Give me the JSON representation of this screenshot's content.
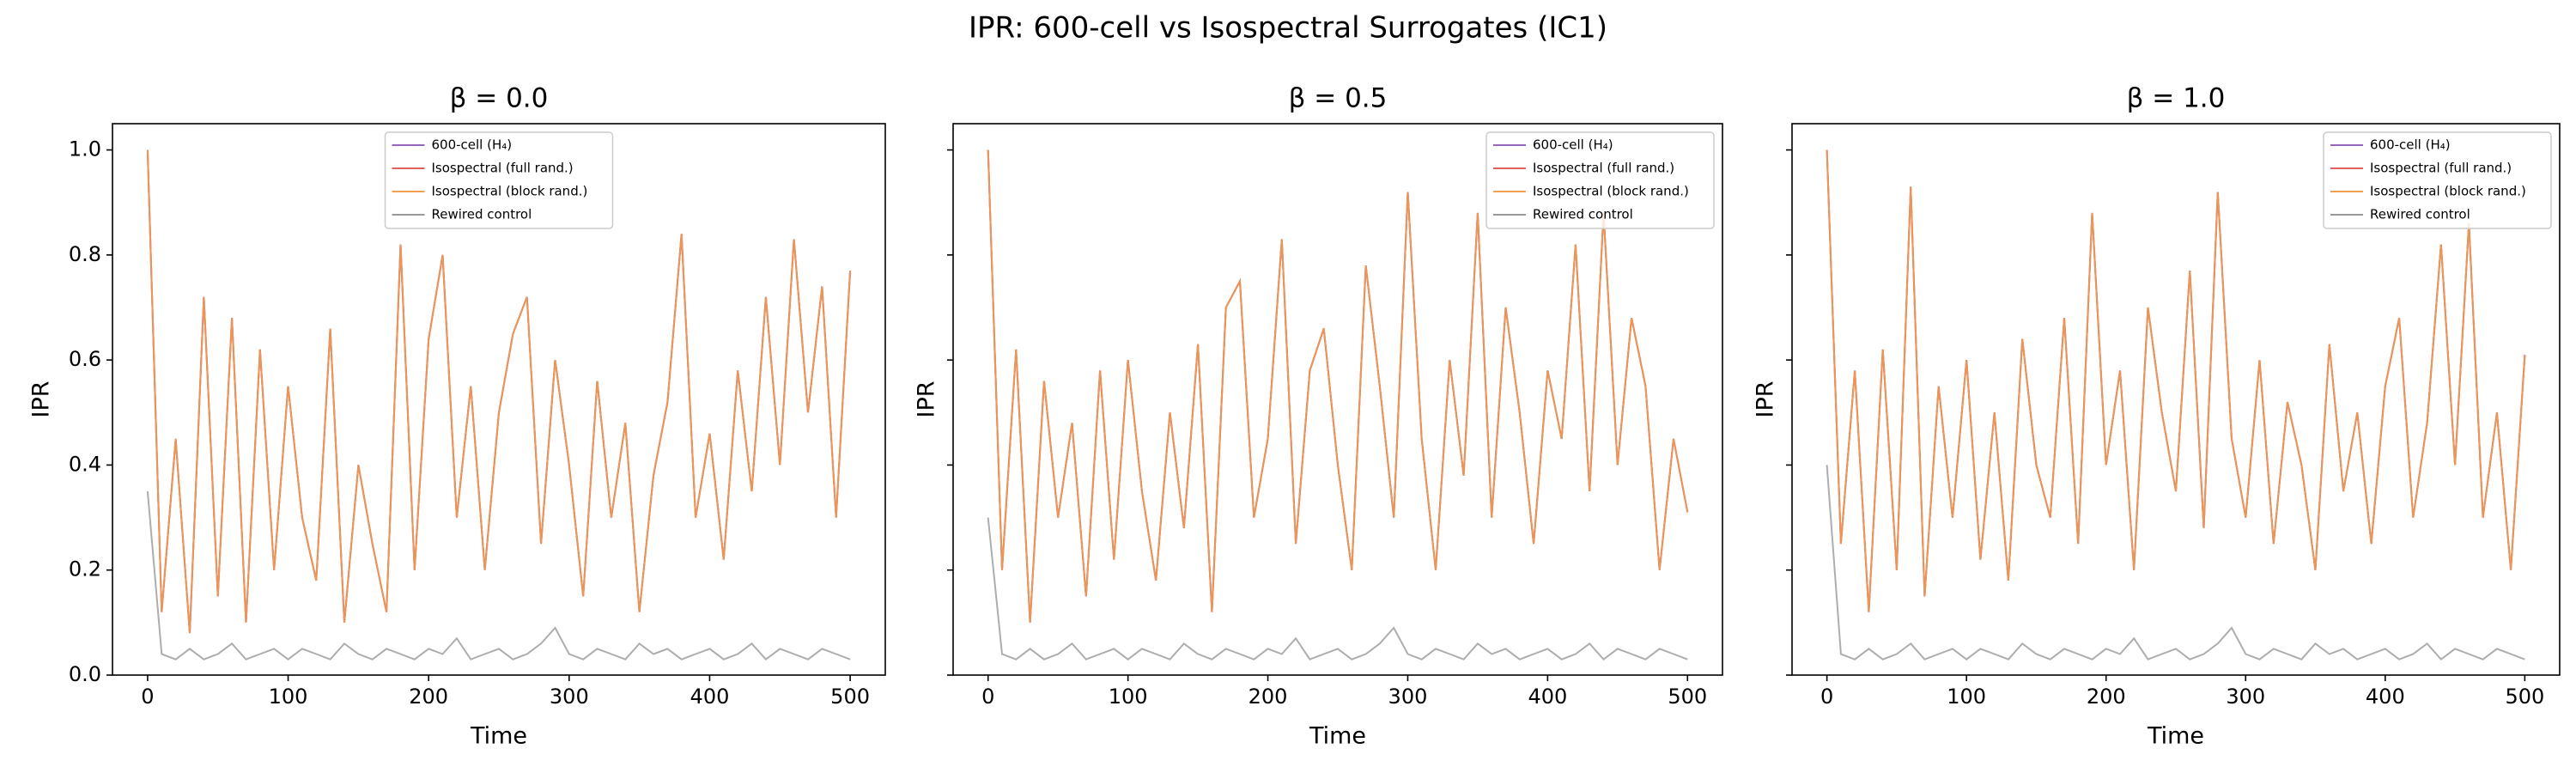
{
  "title": "IPR: 600-cell vs Isospectral Surrogates (IC1)",
  "sharey": true,
  "chart_data": [
    {
      "type": "line",
      "title": "β = 0.0",
      "xlabel": "Time",
      "ylabel": "IPR",
      "legend_loc": "upper center",
      "xlim": [
        -25,
        525
      ],
      "ylim": [
        0,
        1.05
      ],
      "xticks": [
        0,
        100,
        200,
        300,
        400,
        500
      ],
      "yticks": [
        {
          "value": 0,
          "label": "0.0"
        },
        0.2,
        0.4,
        0.6,
        0.8,
        {
          "value": 1,
          "label": "1.0"
        }
      ],
      "x": [
        0,
        10,
        20,
        30,
        40,
        50,
        60,
        70,
        80,
        90,
        100,
        110,
        120,
        130,
        140,
        150,
        160,
        170,
        180,
        190,
        200,
        210,
        220,
        230,
        240,
        250,
        260,
        270,
        280,
        290,
        300,
        310,
        320,
        330,
        340,
        350,
        360,
        370,
        380,
        390,
        400,
        410,
        420,
        430,
        440,
        450,
        460,
        470,
        480,
        490,
        500
      ],
      "series": [
        {
          "name": "600-cell (H₄)",
          "color": "#9467bd",
          "values": [
            1.0,
            0.12,
            0.45,
            0.08,
            0.72,
            0.15,
            0.68,
            0.1,
            0.62,
            0.2,
            0.55,
            0.3,
            0.18,
            0.66,
            0.1,
            0.4,
            0.25,
            0.12,
            0.82,
            0.2,
            0.64,
            0.8,
            0.3,
            0.55,
            0.2,
            0.5,
            0.65,
            0.72,
            0.25,
            0.6,
            0.4,
            0.15,
            0.56,
            0.3,
            0.48,
            0.12,
            0.38,
            0.52,
            0.84,
            0.3,
            0.46,
            0.22,
            0.58,
            0.35,
            0.72,
            0.4,
            0.83,
            0.5,
            0.74,
            0.3,
            0.77
          ]
        },
        {
          "name": "Isospectral (full rand.)",
          "color": "#e0605a",
          "values": [
            1.0,
            0.12,
            0.45,
            0.08,
            0.72,
            0.15,
            0.68,
            0.1,
            0.62,
            0.2,
            0.55,
            0.3,
            0.18,
            0.66,
            0.1,
            0.4,
            0.25,
            0.12,
            0.82,
            0.2,
            0.64,
            0.8,
            0.3,
            0.55,
            0.2,
            0.5,
            0.65,
            0.72,
            0.25,
            0.6,
            0.4,
            0.15,
            0.56,
            0.3,
            0.48,
            0.12,
            0.38,
            0.52,
            0.84,
            0.3,
            0.46,
            0.22,
            0.58,
            0.35,
            0.72,
            0.4,
            0.83,
            0.5,
            0.74,
            0.3,
            0.77
          ]
        },
        {
          "name": "Isospectral (block rand.)",
          "color": "#f0a050",
          "values": [
            1.0,
            0.12,
            0.45,
            0.08,
            0.72,
            0.15,
            0.68,
            0.1,
            0.62,
            0.2,
            0.55,
            0.3,
            0.18,
            0.66,
            0.1,
            0.4,
            0.25,
            0.12,
            0.82,
            0.2,
            0.64,
            0.8,
            0.3,
            0.55,
            0.2,
            0.5,
            0.65,
            0.72,
            0.25,
            0.6,
            0.4,
            0.15,
            0.56,
            0.3,
            0.48,
            0.12,
            0.38,
            0.52,
            0.84,
            0.3,
            0.46,
            0.22,
            0.58,
            0.35,
            0.72,
            0.4,
            0.83,
            0.5,
            0.74,
            0.3,
            0.77
          ]
        },
        {
          "name": "Rewired control",
          "color": "#999999",
          "values": [
            0.35,
            0.04,
            0.03,
            0.05,
            0.03,
            0.04,
            0.06,
            0.03,
            0.04,
            0.05,
            0.03,
            0.05,
            0.04,
            0.03,
            0.06,
            0.04,
            0.03,
            0.05,
            0.04,
            0.03,
            0.05,
            0.04,
            0.07,
            0.03,
            0.04,
            0.05,
            0.03,
            0.04,
            0.06,
            0.09,
            0.04,
            0.03,
            0.05,
            0.04,
            0.03,
            0.06,
            0.04,
            0.05,
            0.03,
            0.04,
            0.05,
            0.03,
            0.04,
            0.06,
            0.03,
            0.05,
            0.04,
            0.03,
            0.05,
            0.04,
            0.03
          ]
        }
      ]
    },
    {
      "type": "line",
      "title": "β = 0.5",
      "xlabel": "Time",
      "ylabel": "IPR",
      "legend_loc": "upper right",
      "xlim": [
        -25,
        525
      ],
      "ylim": [
        0,
        1.05
      ],
      "xticks": [
        0,
        100,
        200,
        300,
        400,
        500
      ],
      "yticks": [
        {
          "value": 0,
          "label": "0.0"
        },
        0.2,
        0.4,
        0.6,
        0.8,
        {
          "value": 1,
          "label": "1.0"
        }
      ],
      "x": [
        0,
        10,
        20,
        30,
        40,
        50,
        60,
        70,
        80,
        90,
        100,
        110,
        120,
        130,
        140,
        150,
        160,
        170,
        180,
        190,
        200,
        210,
        220,
        230,
        240,
        250,
        260,
        270,
        280,
        290,
        300,
        310,
        320,
        330,
        340,
        350,
        360,
        370,
        380,
        390,
        400,
        410,
        420,
        430,
        440,
        450,
        460,
        470,
        480,
        490,
        500
      ],
      "series": [
        {
          "name": "600-cell (H₄)",
          "color": "#9467bd",
          "values": [
            1.0,
            0.2,
            0.62,
            0.1,
            0.56,
            0.3,
            0.48,
            0.15,
            0.58,
            0.22,
            0.6,
            0.35,
            0.18,
            0.5,
            0.28,
            0.63,
            0.12,
            0.7,
            0.75,
            0.3,
            0.45,
            0.83,
            0.25,
            0.58,
            0.66,
            0.4,
            0.2,
            0.78,
            0.55,
            0.3,
            0.92,
            0.45,
            0.2,
            0.6,
            0.38,
            0.88,
            0.3,
            0.7,
            0.5,
            0.25,
            0.58,
            0.45,
            0.82,
            0.35,
            0.88,
            0.4,
            0.68,
            0.55,
            0.2,
            0.45,
            0.31
          ]
        },
        {
          "name": "Isospectral (full rand.)",
          "color": "#e0605a",
          "values": [
            1.0,
            0.2,
            0.62,
            0.1,
            0.56,
            0.3,
            0.48,
            0.15,
            0.58,
            0.22,
            0.6,
            0.35,
            0.18,
            0.5,
            0.28,
            0.63,
            0.12,
            0.7,
            0.75,
            0.3,
            0.45,
            0.83,
            0.25,
            0.58,
            0.66,
            0.4,
            0.2,
            0.78,
            0.55,
            0.3,
            0.92,
            0.45,
            0.2,
            0.6,
            0.38,
            0.88,
            0.3,
            0.7,
            0.5,
            0.25,
            0.58,
            0.45,
            0.82,
            0.35,
            0.88,
            0.4,
            0.68,
            0.55,
            0.2,
            0.45,
            0.31
          ]
        },
        {
          "name": "Isospectral (block rand.)",
          "color": "#f0a050",
          "values": [
            1.0,
            0.2,
            0.62,
            0.1,
            0.56,
            0.3,
            0.48,
            0.15,
            0.58,
            0.22,
            0.6,
            0.35,
            0.18,
            0.5,
            0.28,
            0.63,
            0.12,
            0.7,
            0.75,
            0.3,
            0.45,
            0.83,
            0.25,
            0.58,
            0.66,
            0.4,
            0.2,
            0.78,
            0.55,
            0.3,
            0.92,
            0.45,
            0.2,
            0.6,
            0.38,
            0.88,
            0.3,
            0.7,
            0.5,
            0.25,
            0.58,
            0.45,
            0.82,
            0.35,
            0.88,
            0.4,
            0.68,
            0.55,
            0.2,
            0.45,
            0.31
          ]
        },
        {
          "name": "Rewired control",
          "color": "#999999",
          "values": [
            0.3,
            0.04,
            0.03,
            0.05,
            0.03,
            0.04,
            0.06,
            0.03,
            0.04,
            0.05,
            0.03,
            0.05,
            0.04,
            0.03,
            0.06,
            0.04,
            0.03,
            0.05,
            0.04,
            0.03,
            0.05,
            0.04,
            0.07,
            0.03,
            0.04,
            0.05,
            0.03,
            0.04,
            0.06,
            0.09,
            0.04,
            0.03,
            0.05,
            0.04,
            0.03,
            0.06,
            0.04,
            0.05,
            0.03,
            0.04,
            0.05,
            0.03,
            0.04,
            0.06,
            0.03,
            0.05,
            0.04,
            0.03,
            0.05,
            0.04,
            0.03
          ]
        }
      ]
    },
    {
      "type": "line",
      "title": "β = 1.0",
      "xlabel": "Time",
      "ylabel": "IPR",
      "legend_loc": "upper right",
      "xlim": [
        -25,
        525
      ],
      "ylim": [
        0,
        1.05
      ],
      "xticks": [
        0,
        100,
        200,
        300,
        400,
        500
      ],
      "yticks": [
        {
          "value": 0,
          "label": "0.0"
        },
        0.2,
        0.4,
        0.6,
        0.8,
        {
          "value": 1,
          "label": "1.0"
        }
      ],
      "x": [
        0,
        10,
        20,
        30,
        40,
        50,
        60,
        70,
        80,
        90,
        100,
        110,
        120,
        130,
        140,
        150,
        160,
        170,
        180,
        190,
        200,
        210,
        220,
        230,
        240,
        250,
        260,
        270,
        280,
        290,
        300,
        310,
        320,
        330,
        340,
        350,
        360,
        370,
        380,
        390,
        400,
        410,
        420,
        430,
        440,
        450,
        460,
        470,
        480,
        490,
        500
      ],
      "series": [
        {
          "name": "600-cell (H₄)",
          "color": "#9467bd",
          "values": [
            1.0,
            0.25,
            0.58,
            0.12,
            0.62,
            0.2,
            0.93,
            0.15,
            0.55,
            0.3,
            0.6,
            0.22,
            0.5,
            0.18,
            0.64,
            0.4,
            0.3,
            0.68,
            0.25,
            0.88,
            0.4,
            0.58,
            0.2,
            0.7,
            0.5,
            0.35,
            0.77,
            0.28,
            0.92,
            0.45,
            0.3,
            0.6,
            0.25,
            0.52,
            0.4,
            0.2,
            0.63,
            0.35,
            0.5,
            0.25,
            0.55,
            0.68,
            0.3,
            0.48,
            0.82,
            0.4,
            0.86,
            0.3,
            0.5,
            0.2,
            0.61
          ]
        },
        {
          "name": "Isospectral (full rand.)",
          "color": "#e0605a",
          "values": [
            1.0,
            0.25,
            0.58,
            0.12,
            0.62,
            0.2,
            0.93,
            0.15,
            0.55,
            0.3,
            0.6,
            0.22,
            0.5,
            0.18,
            0.64,
            0.4,
            0.3,
            0.68,
            0.25,
            0.88,
            0.4,
            0.58,
            0.2,
            0.7,
            0.5,
            0.35,
            0.77,
            0.28,
            0.92,
            0.45,
            0.3,
            0.6,
            0.25,
            0.52,
            0.4,
            0.2,
            0.63,
            0.35,
            0.5,
            0.25,
            0.55,
            0.68,
            0.3,
            0.48,
            0.82,
            0.4,
            0.86,
            0.3,
            0.5,
            0.2,
            0.61
          ]
        },
        {
          "name": "Isospectral (block rand.)",
          "color": "#f0a050",
          "values": [
            1.0,
            0.25,
            0.58,
            0.12,
            0.62,
            0.2,
            0.93,
            0.15,
            0.55,
            0.3,
            0.6,
            0.22,
            0.5,
            0.18,
            0.64,
            0.4,
            0.3,
            0.68,
            0.25,
            0.88,
            0.4,
            0.58,
            0.2,
            0.7,
            0.5,
            0.35,
            0.77,
            0.28,
            0.92,
            0.45,
            0.3,
            0.6,
            0.25,
            0.52,
            0.4,
            0.2,
            0.63,
            0.35,
            0.5,
            0.25,
            0.55,
            0.68,
            0.3,
            0.48,
            0.82,
            0.4,
            0.86,
            0.3,
            0.5,
            0.2,
            0.61
          ]
        },
        {
          "name": "Rewired control",
          "color": "#999999",
          "values": [
            0.4,
            0.04,
            0.03,
            0.05,
            0.03,
            0.04,
            0.06,
            0.03,
            0.04,
            0.05,
            0.03,
            0.05,
            0.04,
            0.03,
            0.06,
            0.04,
            0.03,
            0.05,
            0.04,
            0.03,
            0.05,
            0.04,
            0.07,
            0.03,
            0.04,
            0.05,
            0.03,
            0.04,
            0.06,
            0.09,
            0.04,
            0.03,
            0.05,
            0.04,
            0.03,
            0.06,
            0.04,
            0.05,
            0.03,
            0.04,
            0.05,
            0.03,
            0.04,
            0.06,
            0.03,
            0.05,
            0.04,
            0.03,
            0.05,
            0.04,
            0.03
          ]
        }
      ]
    }
  ]
}
